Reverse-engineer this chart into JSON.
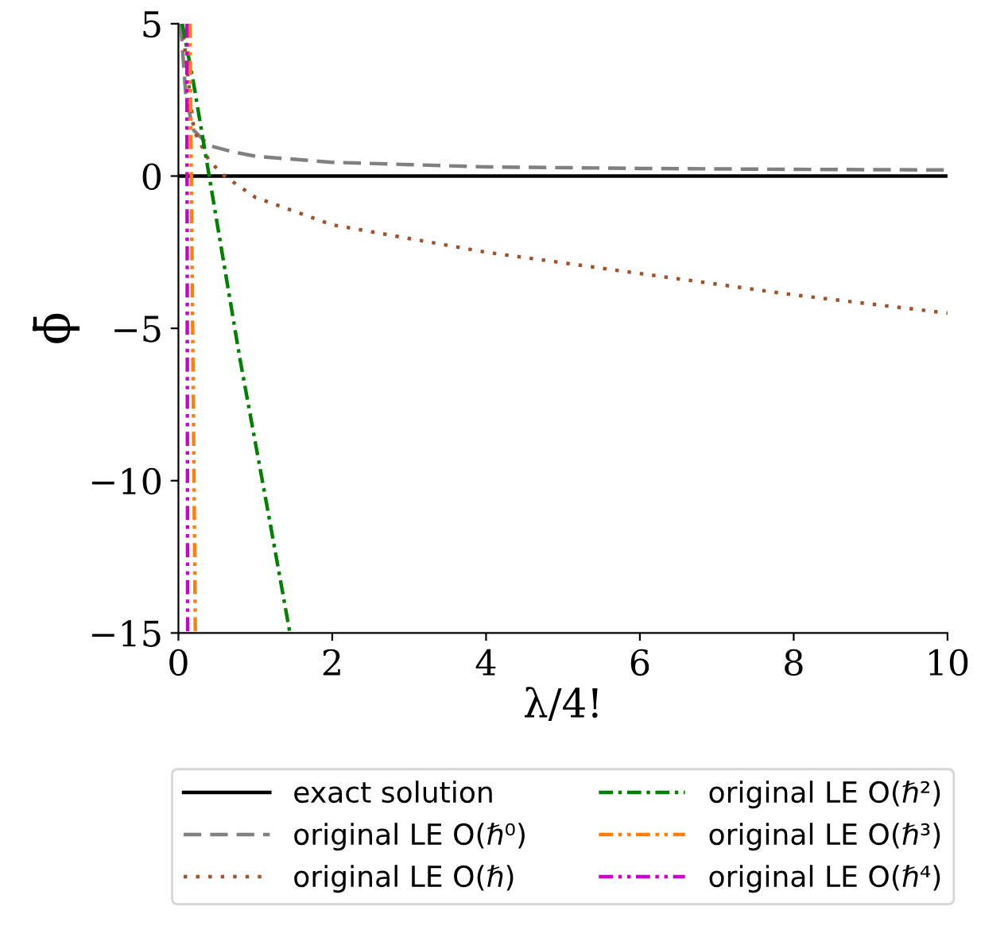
{
  "chart_data": {
    "type": "line",
    "xlabel": "λ/4!",
    "ylabel": "ϕ̄",
    "xlim": [
      0,
      10
    ],
    "ylim": [
      -15,
      5
    ],
    "xticks": [
      0,
      2,
      4,
      6,
      8,
      10
    ],
    "yticks": [
      {
        "value": 5,
        "label": "5"
      },
      {
        "value": 0,
        "label": "0"
      },
      {
        "value": -5,
        "label": "−5"
      },
      {
        "value": -10,
        "label": "−10"
      },
      {
        "value": -15,
        "label": "−15"
      }
    ],
    "grid": false,
    "legend": "bottom",
    "series": [
      {
        "name": "exact solution",
        "color": "#000000",
        "line_style": "solid",
        "x": [
          0,
          10
        ],
        "values": [
          0,
          0
        ]
      },
      {
        "name": "original LE O(ℏ⁰)",
        "color": "#808080",
        "line_style": "dashed",
        "x": [
          0.03,
          0.1,
          0.2,
          0.4,
          0.7,
          1,
          2,
          4,
          6,
          8,
          10
        ],
        "values": [
          5,
          2.5,
          1.5,
          1.0,
          0.8,
          0.65,
          0.45,
          0.3,
          0.25,
          0.22,
          0.2
        ]
      },
      {
        "name": "original LE O(ℏ)",
        "color": "#a0522d",
        "line_style": "dotted",
        "x": [
          0.05,
          0.2,
          0.4,
          0.6,
          1,
          2,
          4,
          6,
          8,
          10
        ],
        "values": [
          5,
          1.5,
          0.5,
          0,
          -0.7,
          -1.6,
          -2.5,
          -3.2,
          -3.9,
          -4.5
        ]
      },
      {
        "name": "original LE O(ℏ²)",
        "color": "#008000",
        "line_style": "dashdot",
        "x": [
          0.05,
          0.2,
          0.4,
          0.8,
          1.2,
          1.45
        ],
        "values": [
          5,
          3,
          0,
          -6,
          -11.5,
          -15
        ]
      },
      {
        "name": "original LE O(ℏ³)",
        "color": "#ff7f0e",
        "line_style": "dashdotdot",
        "x": [
          0.15,
          0.22
        ],
        "values": [
          5,
          -15
        ]
      },
      {
        "name": "original LE O(ℏ⁴)",
        "color": "#cc00cc",
        "line_style": "dashdotdot",
        "x": [
          0.11,
          0.12
        ],
        "values": [
          5,
          -15
        ]
      }
    ]
  }
}
